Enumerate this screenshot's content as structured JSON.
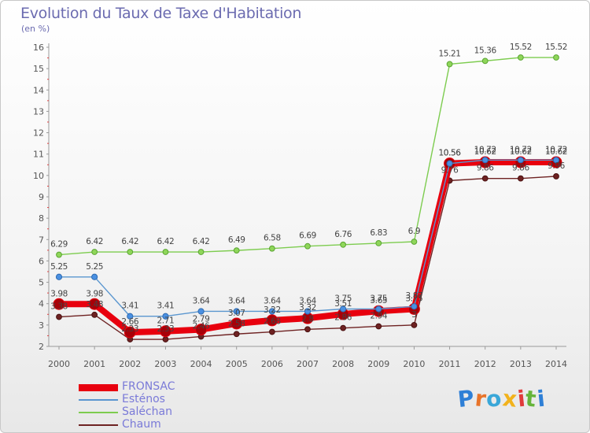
{
  "title": "Evolution du Taux de Taxe d'Habitation",
  "subtitle": "(en %)",
  "logo": {
    "letters": [
      "P",
      "r",
      "o",
      "x",
      "i",
      "t",
      "i"
    ],
    "colors": [
      "#2e7fd6",
      "#e8742a",
      "#3aa7d8",
      "#f2b21b",
      "#e03b3b",
      "#66b43a",
      "#2e7fd6"
    ]
  },
  "chart_data": {
    "type": "line",
    "x": [
      "2000",
      "2001",
      "2002",
      "2003",
      "2004",
      "2005",
      "2006",
      "2007",
      "2008",
      "2009",
      "2010",
      "2011",
      "2012",
      "2013",
      "2014"
    ],
    "ylim": [
      2,
      16
    ],
    "yticks": [
      "2",
      "3",
      "4",
      "5",
      "6",
      "7",
      "8",
      "9",
      "10",
      "11",
      "12",
      "13",
      "14",
      "15",
      "16"
    ],
    "grid": false,
    "legend_position": "bottom-left",
    "series": [
      {
        "name": "FRONSAC",
        "color": "#e8000e",
        "values": [
          3.98,
          3.98,
          2.66,
          2.71,
          2.79,
          3.07,
          3.22,
          3.32,
          3.51,
          3.65,
          3.75,
          10.56,
          10.62,
          10.62,
          10.62
        ],
        "labels": [
          "3.98",
          "3.98",
          "2.66",
          "2.71",
          "2.79",
          "3.07",
          "3.22",
          "3.32",
          "3.51",
          "3.65",
          "3.75",
          "10.56",
          "10.62",
          "10.62",
          "10.62"
        ]
      },
      {
        "name": "Esténos",
        "color": "#5a96cf",
        "values": [
          5.25,
          5.25,
          3.41,
          3.41,
          3.64,
          3.64,
          3.64,
          3.64,
          3.75,
          3.75,
          3.87,
          10.56,
          10.72,
          10.72,
          10.72
        ],
        "labels": [
          "5.25",
          "5.25",
          "3.41",
          "3.41",
          "3.64",
          "3.64",
          "3.64",
          "3.64",
          "3.75",
          "3.75",
          "3.87",
          "10.56",
          "10.72",
          "10.72",
          "10.72"
        ]
      },
      {
        "name": "Saléchan",
        "color": "#7dcc4f",
        "values": [
          6.29,
          6.42,
          6.42,
          6.42,
          6.42,
          6.49,
          6.58,
          6.69,
          6.76,
          6.83,
          6.9,
          15.21,
          15.36,
          15.52,
          15.52
        ],
        "labels": [
          "6.29",
          "6.42",
          "6.42",
          "6.42",
          "6.42",
          "6.49",
          "6.58",
          "6.69",
          "6.76",
          "6.83",
          "6.9",
          "15.21",
          "15.36",
          "15.52",
          "15.52"
        ]
      },
      {
        "name": "Chaum",
        "color": "#6e2222",
        "values": [
          3.38,
          3.48,
          2.33,
          2.33,
          2.46,
          2.58,
          2.68,
          2.8,
          2.86,
          2.94,
          3.0,
          9.76,
          9.86,
          9.86,
          9.96
        ],
        "labels": [
          "3.38",
          "3.48",
          "2.33",
          "2.33",
          "2.46",
          "2.58",
          "2.68",
          "2.8",
          "2.86",
          "2.94",
          "3",
          "9.76",
          "9.86",
          "9.86",
          "9.96"
        ]
      }
    ]
  }
}
